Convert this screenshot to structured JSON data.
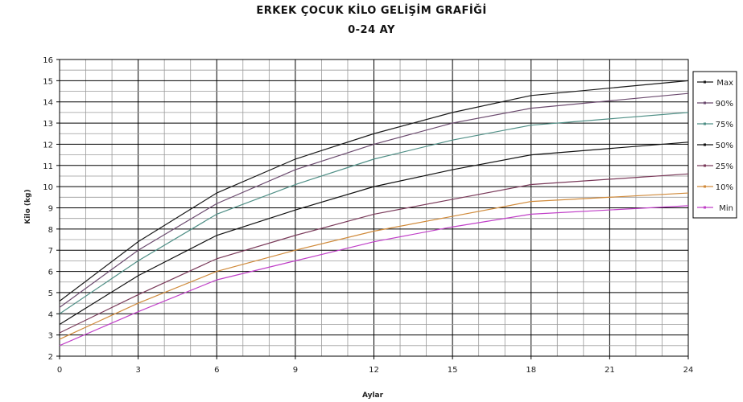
{
  "chart_data": {
    "type": "line",
    "title": "ERKEK ÇOCUK KİLO GELİŞİM GRAFİĞİ",
    "subtitle": "0-24 AY",
    "xlabel": "Aylar",
    "ylabel": "Kilo (kg)",
    "xlim": [
      0,
      24
    ],
    "ylim": [
      2,
      16
    ],
    "x_ticks": [
      0,
      3,
      6,
      9,
      12,
      15,
      18,
      21,
      24
    ],
    "y_ticks": [
      2,
      3,
      4,
      5,
      6,
      7,
      8,
      9,
      10,
      11,
      12,
      13,
      14,
      15,
      16
    ],
    "grid": true,
    "legend_position": "right",
    "x": [
      0,
      3,
      6,
      9,
      12,
      15,
      18,
      24
    ],
    "series": [
      {
        "name": "Max",
        "color": "#1a1a1a",
        "values": [
          4.6,
          7.4,
          9.7,
          11.3,
          12.5,
          13.5,
          14.3,
          15.0
        ]
      },
      {
        "name": "90%",
        "color": "#6b4a6e",
        "values": [
          4.3,
          7.0,
          9.2,
          10.8,
          12.0,
          13.0,
          13.7,
          14.4
        ]
      },
      {
        "name": "75%",
        "color": "#4f8f86",
        "values": [
          4.0,
          6.5,
          8.7,
          10.1,
          11.3,
          12.2,
          12.9,
          13.5
        ]
      },
      {
        "name": "50%",
        "color": "#111111",
        "values": [
          3.5,
          5.8,
          7.7,
          8.9,
          10.0,
          10.8,
          11.5,
          12.1
        ]
      },
      {
        "name": "25%",
        "color": "#7a3a5a",
        "values": [
          3.1,
          4.9,
          6.6,
          7.7,
          8.7,
          9.4,
          10.1,
          10.6
        ]
      },
      {
        "name": "10%",
        "color": "#d08a3a",
        "values": [
          2.8,
          4.5,
          6.0,
          7.0,
          7.9,
          8.6,
          9.3,
          9.7
        ]
      },
      {
        "name": "Min",
        "color": "#c040c8",
        "values": [
          2.5,
          4.1,
          5.6,
          6.5,
          7.4,
          8.1,
          8.7,
          9.1
        ]
      }
    ]
  }
}
